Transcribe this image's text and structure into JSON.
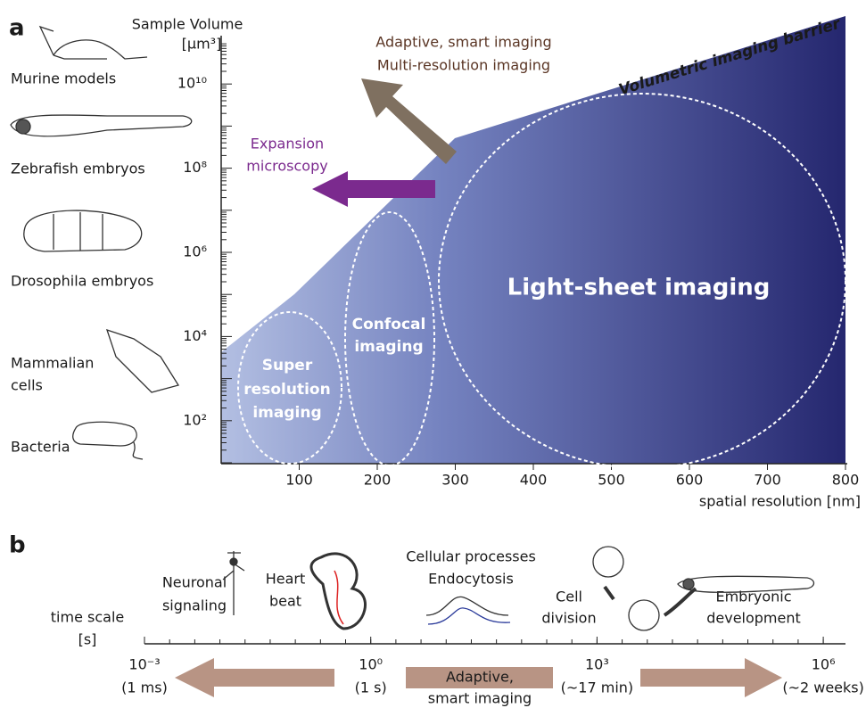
{
  "panel_a": {
    "label": "a",
    "y_axis_title": [
      "Sample Volume",
      "[µm³]"
    ],
    "y_ticks": [
      "10¹⁰",
      "10⁸",
      "10⁶",
      "10⁴",
      "10²"
    ],
    "x_ticks": [
      "100",
      "200",
      "300",
      "400",
      "500",
      "600",
      "700",
      "800"
    ],
    "x_axis_title": "spatial resolution [nm]",
    "organisms": [
      [
        "Murine models"
      ],
      [
        "Zebrafish embryos"
      ],
      [
        "Drosophila embryos"
      ],
      [
        "Mammalian",
        "cells"
      ],
      [
        "Bacteria"
      ]
    ],
    "barrier": "Volumetric imaging barrier",
    "regions": [
      [
        "Super",
        "resolution",
        "imaging"
      ],
      [
        "Confocal",
        "imaging"
      ],
      [
        "Light-sheet imaging"
      ]
    ],
    "adaptive": [
      "Adaptive, smart imaging",
      "Multi-resolution imaging"
    ],
    "expansion": [
      "Expansion",
      "microscopy"
    ]
  },
  "panel_b": {
    "label": "b",
    "axis_title": [
      "time scale",
      "[s]"
    ],
    "ticks": [
      [
        "10⁻³",
        "(1 ms)"
      ],
      [
        "10⁰",
        "(1 s)"
      ],
      [
        "10³",
        "(~17 min)"
      ],
      [
        "10⁶",
        "(~2 weeks)"
      ]
    ],
    "adaptive": [
      "Adaptive,",
      "smart imaging"
    ],
    "events": [
      [
        "Neuronal",
        "signaling"
      ],
      [
        "Heart",
        "beat"
      ],
      [
        "Cellular processes",
        "Endocytosis"
      ],
      [
        "Cell",
        "division"
      ],
      [
        "Embryonic",
        "development"
      ]
    ]
  }
}
